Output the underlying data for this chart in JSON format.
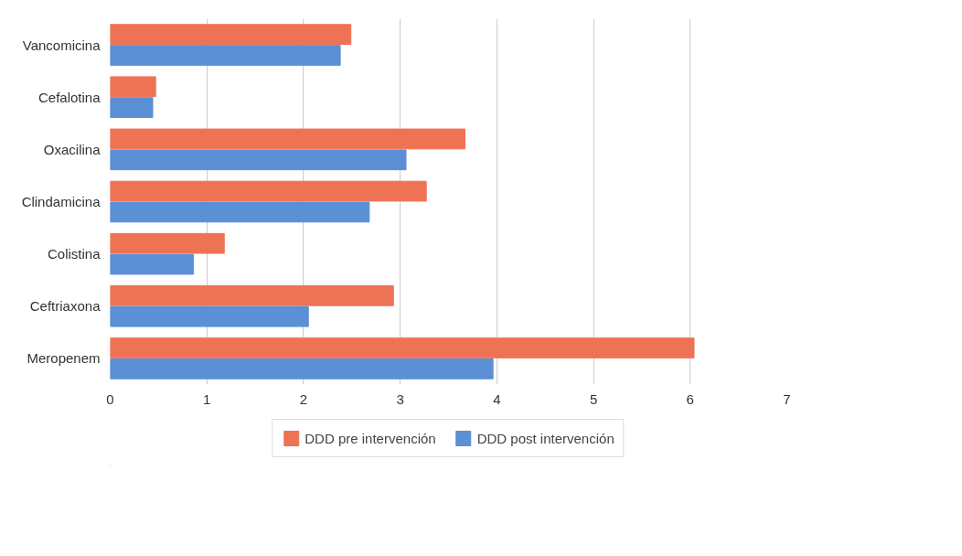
{
  "chart_data": {
    "type": "bar",
    "orientation": "horizontal",
    "categories": [
      "Vancomicina",
      "Cefalotina",
      "Oxacilina",
      "Clindamicina",
      "Colistina",
      "Ceftriaxona",
      "Meropenem"
    ],
    "series": [
      {
        "name": "DDD pre intervención",
        "color": "#ee7355",
        "values": [
          2.49,
          0.47,
          3.67,
          3.27,
          1.18,
          2.93,
          6.04
        ]
      },
      {
        "name": "DDD post intervención",
        "color": "#5b8fd6",
        "values": [
          2.38,
          0.44,
          3.06,
          2.68,
          0.86,
          2.05,
          3.96
        ]
      }
    ],
    "xlim": [
      0,
      7
    ],
    "xticks": [
      0,
      1,
      2,
      3,
      4,
      5,
      6,
      7
    ],
    "grid": "x",
    "legend": "bottom"
  }
}
